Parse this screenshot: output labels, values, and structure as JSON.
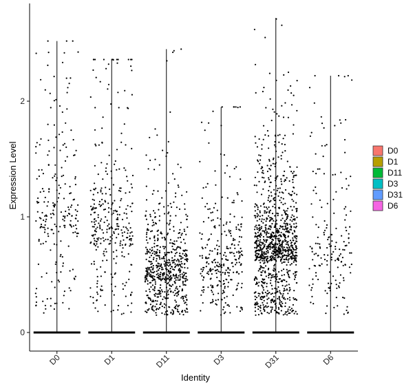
{
  "chart_data": {
    "type": "scatter",
    "subtype": "violin-jitter",
    "title": "",
    "xlabel": "Identity",
    "ylabel": "Expression Level",
    "categories": [
      "D0",
      "D1",
      "D11",
      "D3",
      "D31",
      "D6"
    ],
    "ylim": [
      -0.15,
      2.85
    ],
    "yticks": [
      0,
      1,
      2
    ],
    "grid": false,
    "legend": {
      "position": "right",
      "entries": [
        {
          "label": "D0",
          "color": "#F8766D"
        },
        {
          "label": "D1",
          "color": "#B79F00"
        },
        {
          "label": "D11",
          "color": "#00BA38"
        },
        {
          "label": "D3",
          "color": "#00BFC4"
        },
        {
          "label": "D31",
          "color": "#619CFF"
        },
        {
          "label": "D6",
          "color": "#F564E3"
        }
      ]
    },
    "series": [
      {
        "name": "D0",
        "max": 2.52,
        "n_expressed": 230,
        "median_expressed": 0.85,
        "spread": 0.55
      },
      {
        "name": "D1",
        "max": 2.36,
        "n_expressed": 330,
        "median_expressed": 0.75,
        "spread": 0.55
      },
      {
        "name": "D11",
        "max": 2.45,
        "n_expressed": 650,
        "median_expressed": 0.45,
        "spread": 0.35
      },
      {
        "name": "D3",
        "max": 1.95,
        "n_expressed": 300,
        "median_expressed": 0.5,
        "spread": 0.45
      },
      {
        "name": "D31",
        "max": 2.72,
        "n_expressed": 1100,
        "median_expressed": 0.62,
        "spread": 0.4
      },
      {
        "name": "D6",
        "max": 2.22,
        "n_expressed": 180,
        "median_expressed": 0.55,
        "spread": 0.45
      }
    ],
    "point_color": "#000000"
  }
}
